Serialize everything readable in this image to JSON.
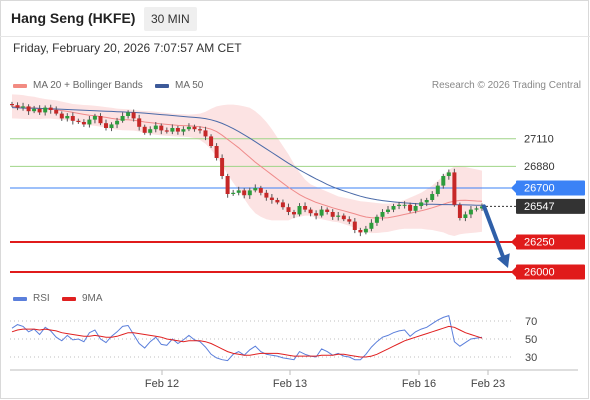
{
  "header": {
    "instrument": "Hang Seng (HKFE)",
    "timeframe": "30 MIN",
    "datetime": "Friday, February 20, 2026 7:07:57 AM CET"
  },
  "legend": {
    "ma20_label": "MA 20 + Bollinger Bands",
    "ma20_color": "#f28b82",
    "ma50_label": "MA 50",
    "ma50_color": "#3d5a99",
    "credit": "Research © 2026 Trading Central"
  },
  "rsi_legend": {
    "rsi_label": "RSI",
    "rsi_color": "#5b7fdb",
    "ma_label": "9MA",
    "ma_color": "#e02020"
  },
  "chart_data": {
    "type": "line",
    "title": "Hang Seng (HKFE)",
    "timeframe": "30 MIN",
    "x_tick_labels": [
      "Feb 12",
      "Feb 13",
      "Feb 16",
      "Feb 23"
    ],
    "price_axis": {
      "ylim": [
        25950,
        27450
      ]
    },
    "levels": [
      {
        "label": "27110",
        "value": 27110,
        "kind": "resistance",
        "color": "#9fd487"
      },
      {
        "label": "26880",
        "value": 26880,
        "kind": "resistance",
        "color": "#9fd487"
      },
      {
        "label": "26700",
        "value": 26700,
        "kind": "pivot",
        "color": "#3b82f6"
      },
      {
        "label": "26547",
        "value": 26547,
        "kind": "last",
        "color": "#333333"
      },
      {
        "label": "26250",
        "value": 26250,
        "kind": "support",
        "color": "#e01b1b"
      },
      {
        "label": "26000",
        "value": 26000,
        "kind": "support",
        "color": "#e01b1b"
      }
    ],
    "last_price": 26547,
    "forecast_target": 26000,
    "close_series": [
      27390,
      27370,
      27380,
      27340,
      27360,
      27330,
      27370,
      27350,
      27320,
      27280,
      27300,
      27260,
      27250,
      27230,
      27270,
      27300,
      27240,
      27200,
      27230,
      27260,
      27300,
      27330,
      27280,
      27210,
      27160,
      27190,
      27220,
      27180,
      27170,
      27200,
      27170,
      27190,
      27210,
      27190,
      27180,
      27130,
      27050,
      26950,
      26800,
      26650,
      26660,
      26680,
      26640,
      26680,
      26700,
      26660,
      26620,
      26600,
      26580,
      26540,
      26500,
      26480,
      26550,
      26520,
      26490,
      26470,
      26520,
      26500,
      26460,
      26470,
      26440,
      26420,
      26350,
      26330,
      26360,
      26410,
      26460,
      26500,
      26520,
      26550,
      26560,
      26560,
      26510,
      26550,
      26580,
      26600,
      26650,
      26720,
      26800,
      26830,
      26560,
      26450,
      26480,
      26520,
      26530,
      26547
    ],
    "ma20_series": [
      27380,
      27378,
      27375,
      27370,
      27368,
      27362,
      27360,
      27357,
      27352,
      27345,
      27338,
      27330,
      27322,
      27313,
      27306,
      27302,
      27295,
      27288,
      27280,
      27274,
      27270,
      27268,
      27264,
      27258,
      27250,
      27245,
      27240,
      27234,
      27230,
      27226,
      27222,
      27220,
      27218,
      27215,
      27210,
      27202,
      27190,
      27170,
      27140,
      27105,
      27070,
      27035,
      26995,
      26955,
      26915,
      26880,
      26845,
      26810,
      26775,
      26740,
      26705,
      26675,
      26645,
      26620,
      26600,
      26580,
      26565,
      26550,
      26535,
      26522,
      26510,
      26497,
      26484,
      26470,
      26458,
      26452,
      26450,
      26450,
      26452,
      26460,
      26470,
      26480,
      26490,
      26500,
      26510,
      26522,
      26535,
      26550,
      26565,
      26580,
      26590,
      26597,
      26598,
      26595,
      26592,
      26590
    ],
    "bb_upper": [
      27480,
      27478,
      27474,
      27466,
      27460,
      27450,
      27442,
      27436,
      27430,
      27420,
      27410,
      27400,
      27396,
      27392,
      27390,
      27386,
      27380,
      27374,
      27368,
      27362,
      27358,
      27356,
      27350,
      27345,
      27342,
      27340,
      27336,
      27330,
      27325,
      27320,
      27316,
      27314,
      27312,
      27314,
      27320,
      27336,
      27360,
      27380,
      27390,
      27395,
      27395,
      27390,
      27380,
      27368,
      27340,
      27300,
      27250,
      27190,
      27120,
      27050,
      26980,
      26900,
      26830,
      26770,
      26730,
      26710,
      26690,
      26670,
      26650,
      26630,
      26620,
      26610,
      26600,
      26590,
      26585,
      26580,
      26575,
      26570,
      26570,
      26575,
      26585,
      26600,
      26620,
      26640,
      26660,
      26690,
      26720,
      26760,
      26800,
      26850,
      26880,
      26880,
      26875,
      26865,
      26855,
      26845
    ],
    "bb_lower": [
      27280,
      27278,
      27276,
      27274,
      27276,
      27274,
      27278,
      27278,
      27274,
      27270,
      27266,
      27260,
      27248,
      27234,
      27222,
      27218,
      27210,
      27202,
      27192,
      27186,
      27182,
      27180,
      27178,
      27171,
      27158,
      27150,
      27144,
      27138,
      27135,
      27132,
      27128,
      27126,
      27124,
      27116,
      27100,
      27068,
      27020,
      26960,
      26890,
      26815,
      26745,
      26680,
      26610,
      26542,
      26490,
      26460,
      26440,
      26430,
      26430,
      26430,
      26430,
      26450,
      26460,
      26470,
      26470,
      26450,
      26440,
      26430,
      26420,
      26414,
      26400,
      26384,
      26368,
      26350,
      26331,
      26324,
      26325,
      26330,
      26334,
      26345,
      26355,
      26360,
      26360,
      26360,
      26360,
      26354,
      26350,
      26340,
      26330,
      26310,
      26300,
      26314,
      26321,
      26325,
      26329,
      26335
    ],
    "ma50_series": [
      27370,
      27368,
      27366,
      27365,
      27364,
      27363,
      27362,
      27360,
      27358,
      27356,
      27354,
      27352,
      27350,
      27348,
      27346,
      27344,
      27342,
      27340,
      27338,
      27336,
      27334,
      27332,
      27330,
      27327,
      27324,
      27320,
      27316,
      27312,
      27308,
      27304,
      27300,
      27296,
      27292,
      27288,
      27284,
      27278,
      27268,
      27255,
      27238,
      27218,
      27195,
      27170,
      27143,
      27115,
      27086,
      27056,
      27026,
      26996,
      26966,
      26936,
      26906,
      26878,
      26851,
      26825,
      26800,
      26776,
      26753,
      26730,
      26710,
      26692,
      26676,
      26661,
      26646,
      26632,
      26620,
      26610,
      26602,
      26595,
      26589,
      26584,
      26580,
      26576,
      26573,
      26570,
      26567,
      26565,
      26564,
      26563,
      26562,
      26562,
      26561,
      26560,
      26559,
      26558,
      26557,
      26556
    ],
    "rsi_axis": {
      "ylim": [
        20,
        80
      ],
      "ticks": [
        70,
        50,
        30
      ]
    },
    "rsi_series": [
      62,
      66,
      64,
      58,
      61,
      55,
      63,
      59,
      52,
      48,
      54,
      49,
      50,
      47,
      57,
      60,
      50,
      46,
      53,
      58,
      64,
      65,
      55,
      45,
      40,
      47,
      52,
      44,
      43,
      50,
      45,
      49,
      54,
      49,
      47,
      41,
      33,
      29,
      27,
      26,
      33,
      36,
      32,
      38,
      42,
      36,
      33,
      32,
      31,
      29,
      28,
      27,
      36,
      33,
      31,
      30,
      39,
      36,
      32,
      34,
      31,
      30,
      27,
      27,
      33,
      41,
      47,
      52,
      54,
      57,
      59,
      60,
      53,
      58,
      61,
      63,
      67,
      71,
      74,
      76,
      47,
      42,
      46,
      50,
      51,
      52
    ],
    "rsi_ma_series": [
      58,
      60,
      61,
      61,
      61,
      60,
      61,
      60,
      59,
      57,
      56,
      55,
      54,
      53,
      53,
      54,
      53,
      52,
      52,
      53,
      55,
      57,
      57,
      56,
      55,
      54,
      53,
      52,
      50,
      49,
      48,
      47,
      48,
      48,
      48,
      47,
      45,
      42,
      39,
      36,
      34,
      33,
      32,
      32,
      33,
      34,
      34,
      34,
      34,
      33,
      32,
      31,
      31,
      31,
      31,
      31,
      32,
      32,
      32,
      33,
      33,
      32,
      31,
      30,
      30,
      31,
      33,
      36,
      39,
      42,
      45,
      48,
      50,
      52,
      54,
      56,
      58,
      60,
      62,
      64,
      63,
      60,
      57,
      55,
      53,
      51
    ]
  }
}
